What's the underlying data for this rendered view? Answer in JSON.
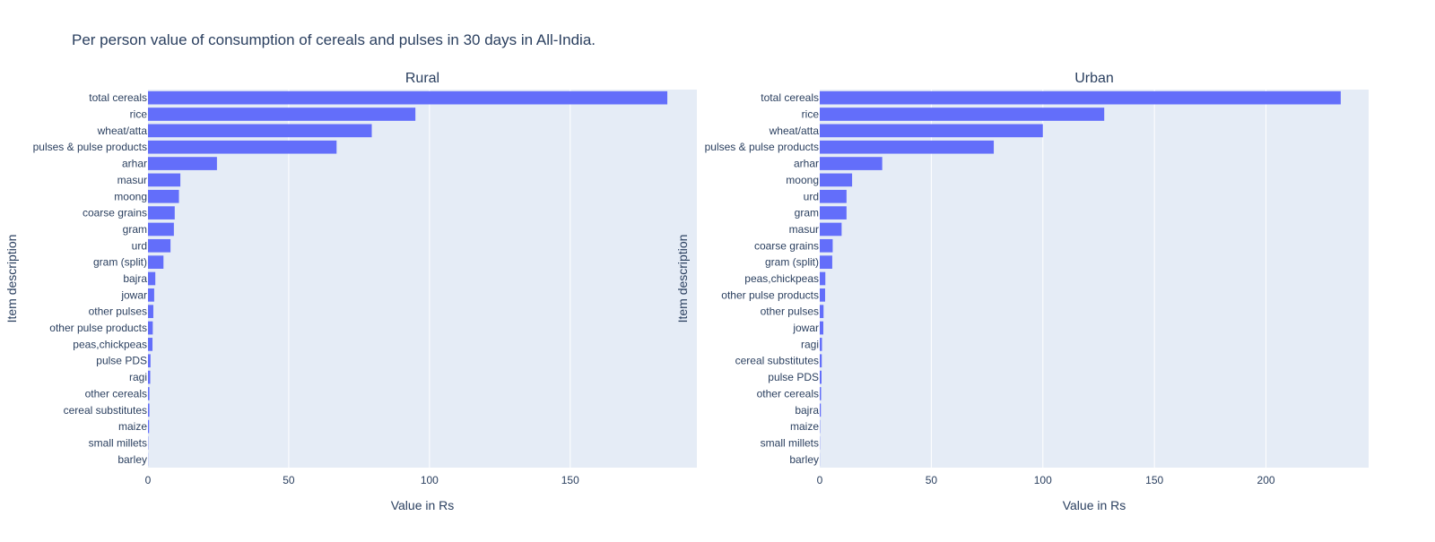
{
  "title": "Per person value of consumption of cereals and pulses in 30 days in All-India.",
  "colors": {
    "bar": "#636efa",
    "plot_bg": "#e5ecf6",
    "grid": "#ffffff",
    "text": "#2a3f5f"
  },
  "chart_data": [
    {
      "type": "bar",
      "orientation": "horizontal",
      "title": "Rural",
      "xlabel": "Value in Rs",
      "ylabel": "Item description",
      "xlim": [
        0,
        195
      ],
      "xticks": [
        0,
        50,
        100,
        150
      ],
      "grid": true,
      "categories": [
        "total cereals",
        "rice",
        "wheat/atta",
        "pulses & pulse products",
        "arhar",
        "masur",
        "moong",
        "coarse grains",
        "gram",
        "urd",
        "gram (split)",
        "bajra",
        "jowar",
        "other pulses",
        "other pulse products",
        "peas,chickpeas",
        "pulse PDS",
        "ragi",
        "other cereals",
        "cereal substitutes",
        "maize",
        "small millets",
        "barley"
      ],
      "values": [
        184.5,
        95,
        79.5,
        67,
        24.5,
        11.5,
        11,
        9.5,
        9.2,
        8,
        5.5,
        2.6,
        2.2,
        1.9,
        1.7,
        1.6,
        0.9,
        0.8,
        0.5,
        0.5,
        0.4,
        0.1,
        0.05
      ]
    },
    {
      "type": "bar",
      "orientation": "horizontal",
      "title": "Urban",
      "xlabel": "Value in Rs",
      "ylabel": "Item description",
      "xlim": [
        0,
        246
      ],
      "xticks": [
        0,
        50,
        100,
        150,
        200
      ],
      "grid": true,
      "categories": [
        "total cereals",
        "rice",
        "wheat/atta",
        "pulses & pulse products",
        "arhar",
        "moong",
        "urd",
        "gram",
        "masur",
        "coarse grains",
        "gram (split)",
        "peas,chickpeas",
        "other pulse products",
        "other pulses",
        "jowar",
        "ragi",
        "cereal substitutes",
        "pulse PDS",
        "other cereals",
        "bajra",
        "maize",
        "small millets",
        "barley"
      ],
      "values": [
        233.5,
        127.5,
        100,
        78,
        28,
        14.5,
        12,
        12,
        9.8,
        5.8,
        5.6,
        2.5,
        2.4,
        1.7,
        1.6,
        1,
        0.9,
        0.8,
        0.6,
        0.5,
        0.15,
        0.1,
        0.05
      ]
    }
  ]
}
